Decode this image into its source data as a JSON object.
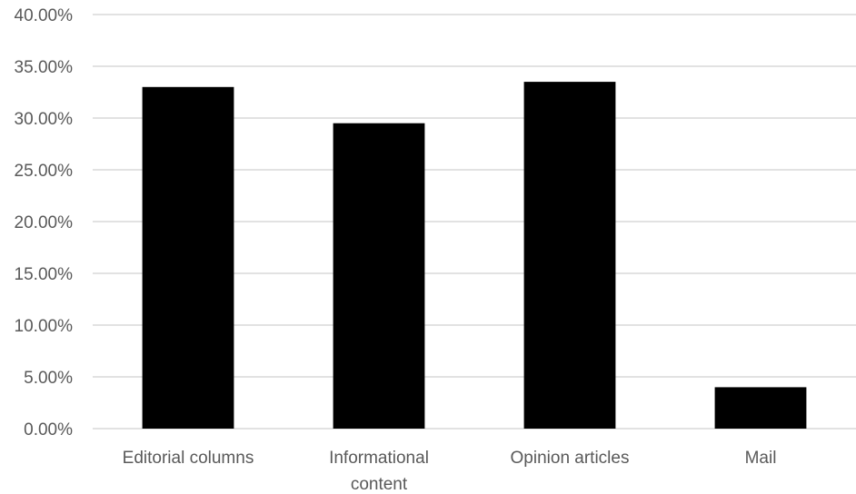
{
  "chart_data": {
    "type": "bar",
    "title": "",
    "xlabel": "",
    "ylabel": "",
    "categories": [
      [
        "Editorial columns"
      ],
      [
        "Informational",
        "content"
      ],
      [
        "Opinion articles"
      ],
      [
        "Mail"
      ]
    ],
    "values": [
      33.0,
      29.5,
      33.5,
      4.0
    ],
    "ylim": [
      0,
      40
    ],
    "y_ticks": [
      0,
      5,
      10,
      15,
      20,
      25,
      30,
      35,
      40
    ],
    "y_tick_labels": [
      "0.00%",
      "5.00%",
      "10.00%",
      "15.00%",
      "20.00%",
      "25.00%",
      "30.00%",
      "35.00%",
      "40.00%"
    ],
    "grid": true,
    "legend": "none",
    "bar_color": "#000000",
    "grid_color": "#d9d9d9",
    "label_color": "#595959"
  }
}
